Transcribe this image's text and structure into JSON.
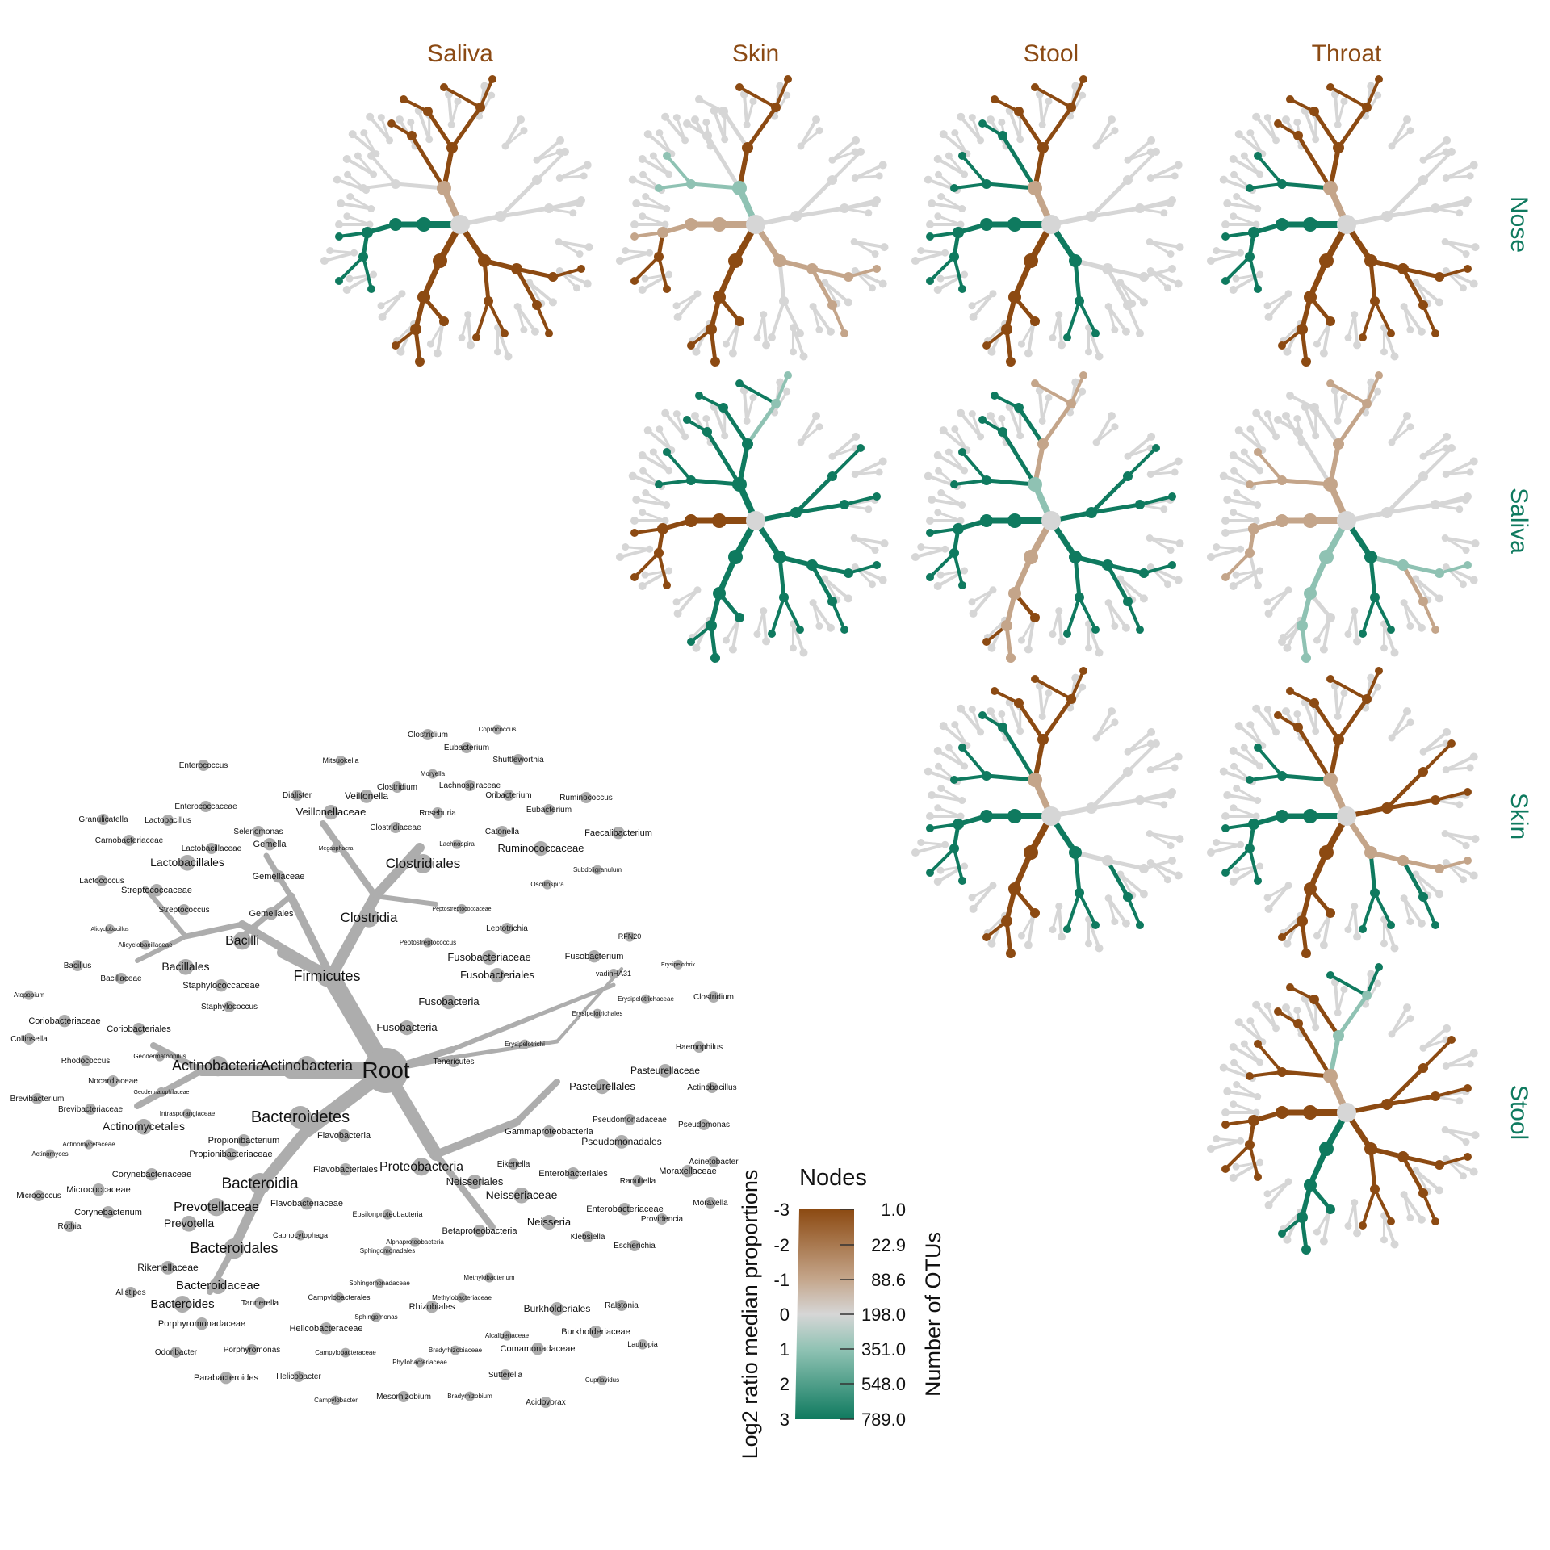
{
  "columns": [
    "Saliva",
    "Skin",
    "Stool",
    "Throat"
  ],
  "rows": [
    "Nose",
    "Saliva",
    "Skin",
    "Stool"
  ],
  "colors": {
    "brown": "#8C4A12",
    "lightbrown": "#C4A58A",
    "grey": "#D6D6D6",
    "lightteal": "#8FC2B3",
    "teal": "#0F7A5F",
    "key_tree": "#ADADAD",
    "col_label": "#8B4A14",
    "row_label": "#0F7A5F"
  },
  "legend": {
    "title": "Nodes",
    "left_axis_label": "Log2 ratio median proportions",
    "right_axis_label": "Number of OTUs",
    "left_ticks": [
      "-3",
      "-2",
      "-1",
      "0",
      "1",
      "2",
      "3"
    ],
    "right_ticks": [
      "1.0",
      "22.9",
      "88.6",
      "198.0",
      "351.0",
      "548.0",
      "789.0"
    ]
  },
  "key_tree": {
    "root": "Root",
    "labels": [
      {
        "t": "Root",
        "s": 28
      },
      {
        "t": "Firmicutes",
        "s": 18
      },
      {
        "t": "Actinobacteria",
        "s": 18
      },
      {
        "t": "Actinobacteria",
        "s": 18
      },
      {
        "t": "Bacteroidetes",
        "s": 20
      },
      {
        "t": "Proteobacteria",
        "s": 16
      },
      {
        "t": "Clostridia",
        "s": 17
      },
      {
        "t": "Clostridiales",
        "s": 17
      },
      {
        "t": "Bacilli",
        "s": 16
      },
      {
        "t": "Bacillales",
        "s": 14
      },
      {
        "t": "Lactobacillales",
        "s": 14
      },
      {
        "t": "Bacteroidia",
        "s": 19
      },
      {
        "t": "Bacteroidales",
        "s": 18
      },
      {
        "t": "Prevotellaceae",
        "s": 16
      },
      {
        "t": "Prevotella",
        "s": 14
      },
      {
        "t": "Bacteroidaceae",
        "s": 15
      },
      {
        "t": "Bacteroides",
        "s": 15
      },
      {
        "t": "Rikenellaceae",
        "s": 12
      },
      {
        "t": "Alistipes",
        "s": 10
      },
      {
        "t": "Tannerella",
        "s": 10
      },
      {
        "t": "Porphyromonadaceae",
        "s": 11
      },
      {
        "t": "Odoribacter",
        "s": 10
      },
      {
        "t": "Porphyromonas",
        "s": 10
      },
      {
        "t": "Parabacteroides",
        "s": 11
      },
      {
        "t": "Flavobacteria",
        "s": 11
      },
      {
        "t": "Flavobacteriales",
        "s": 11
      },
      {
        "t": "Flavobacteriaceae",
        "s": 11
      },
      {
        "t": "Capnocytophaga",
        "s": 9
      },
      {
        "t": "Veillonella",
        "s": 12
      },
      {
        "t": "Veillonellaceae",
        "s": 13
      },
      {
        "t": "Selenomonas",
        "s": 10
      },
      {
        "t": "Dialister",
        "s": 10
      },
      {
        "t": "Mitsuokella",
        "s": 9
      },
      {
        "t": "Megasphaera",
        "s": 7
      },
      {
        "t": "Clostridium",
        "s": 10
      },
      {
        "t": "Clostridium",
        "s": 10
      },
      {
        "t": "Eubacterium",
        "s": 10
      },
      {
        "t": "Coprococcus",
        "s": 8
      },
      {
        "t": "Shuttleworthia",
        "s": 10
      },
      {
        "t": "Moryella",
        "s": 8
      },
      {
        "t": "Lachnospiraceae",
        "s": 10
      },
      {
        "t": "Oribacterium",
        "s": 10
      },
      {
        "t": "Roseburia",
        "s": 10
      },
      {
        "t": "Catonella",
        "s": 10
      },
      {
        "t": "Lachnospira",
        "s": 8
      },
      {
        "t": "Clostridiaceae",
        "s": 10
      },
      {
        "t": "Ruminococcus",
        "s": 10
      },
      {
        "t": "Eubacterium",
        "s": 10
      },
      {
        "t": "Faecalibacterium",
        "s": 11
      },
      {
        "t": "Ruminococcaceae",
        "s": 13
      },
      {
        "t": "Subdoligranulum",
        "s": 8
      },
      {
        "t": "Oscillospira",
        "s": 8
      },
      {
        "t": "Peptostreptococcaceae",
        "s": 7
      },
      {
        "t": "Peptostreptococcus",
        "s": 8
      },
      {
        "t": "Enterococcus",
        "s": 10
      },
      {
        "t": "Enterococcaceae",
        "s": 10
      },
      {
        "t": "Granulicatella",
        "s": 10
      },
      {
        "t": "Lactobacillus",
        "s": 10
      },
      {
        "t": "Carnobacteriaceae",
        "s": 10
      },
      {
        "t": "Lactobacillaceae",
        "s": 10
      },
      {
        "t": "Gemella",
        "s": 11
      },
      {
        "t": "Gemellaceae",
        "s": 11
      },
      {
        "t": "Gemellales",
        "s": 11
      },
      {
        "t": "Lactococcus",
        "s": 10
      },
      {
        "t": "Streptococcaceae",
        "s": 11
      },
      {
        "t": "Streptococcus",
        "s": 10
      },
      {
        "t": "Alicyclobacillus",
        "s": 7
      },
      {
        "t": "Alicyclobacillaceae",
        "s": 8
      },
      {
        "t": "Bacillus",
        "s": 10
      },
      {
        "t": "Bacillaceae",
        "s": 10
      },
      {
        "t": "Staphylococcaceae",
        "s": 11
      },
      {
        "t": "Staphylococcus",
        "s": 10
      },
      {
        "t": "Atopobium",
        "s": 8
      },
      {
        "t": "Coriobacteriaceae",
        "s": 11
      },
      {
        "t": "Coriobacteriales",
        "s": 11
      },
      {
        "t": "Collinsella",
        "s": 10
      },
      {
        "t": "Rhodococcus",
        "s": 10
      },
      {
        "t": "Geodermatophilus",
        "s": 8
      },
      {
        "t": "Nocardiaceae",
        "s": 10
      },
      {
        "t": "Geodermatophilaceae",
        "s": 7
      },
      {
        "t": "Brevibacterium",
        "s": 10
      },
      {
        "t": "Brevibacteriaceae",
        "s": 10
      },
      {
        "t": "Intrasporangiaceae",
        "s": 8
      },
      {
        "t": "Actinomycetales",
        "s": 14
      },
      {
        "t": "Propionibacterium",
        "s": 11
      },
      {
        "t": "Propionibacteriaceae",
        "s": 11
      },
      {
        "t": "Actinomycetaceae",
        "s": 8
      },
      {
        "t": "Actinomyces",
        "s": 8
      },
      {
        "t": "Corynebacteriaceae",
        "s": 11
      },
      {
        "t": "Micrococcaceae",
        "s": 11
      },
      {
        "t": "Micrococcus",
        "s": 10
      },
      {
        "t": "Corynebacterium",
        "s": 11
      },
      {
        "t": "Rothia",
        "s": 10
      },
      {
        "t": "Leptotrichia",
        "s": 10
      },
      {
        "t": "Fusobacteriaceae",
        "s": 13
      },
      {
        "t": "Fusobacterium",
        "s": 11
      },
      {
        "t": "Fusobacteriales",
        "s": 13
      },
      {
        "t": "Fusobacteria",
        "s": 13
      },
      {
        "t": "Fusobacteria",
        "s": 13
      },
      {
        "t": "RFN20",
        "s": 9
      },
      {
        "t": "vadinHA31",
        "s": 9
      },
      {
        "t": "Erysipelothrix",
        "s": 7
      },
      {
        "t": "Erysipelotrichaceae",
        "s": 8
      },
      {
        "t": "Clostridium",
        "s": 10
      },
      {
        "t": "Erysipelotrichales",
        "s": 8
      },
      {
        "t": "Erysipelotrichi",
        "s": 8
      },
      {
        "t": "Tenericutes",
        "s": 10
      },
      {
        "t": "Haemophilus",
        "s": 10
      },
      {
        "t": "Pasteurellaceae",
        "s": 12
      },
      {
        "t": "Actinobacillus",
        "s": 10
      },
      {
        "t": "Pasteurellales",
        "s": 13
      },
      {
        "t": "Pseudomonadaceae",
        "s": 10
      },
      {
        "t": "Pseudomonas",
        "s": 10
      },
      {
        "t": "Gammaproteobacteria",
        "s": 11
      },
      {
        "t": "Pseudomonadales",
        "s": 12
      },
      {
        "t": "Acinetobacter",
        "s": 10
      },
      {
        "t": "Moraxellaceae",
        "s": 11
      },
      {
        "t": "Eikenella",
        "s": 10
      },
      {
        "t": "Enterobacteriales",
        "s": 11
      },
      {
        "t": "Raoultella",
        "s": 10
      },
      {
        "t": "Neisseriales",
        "s": 13
      },
      {
        "t": "Neisseriaceae",
        "s": 14
      },
      {
        "t": "Moraxella",
        "s": 10
      },
      {
        "t": "Enterobacteriaceae",
        "s": 11
      },
      {
        "t": "Providencia",
        "s": 10
      },
      {
        "t": "Neisseria",
        "s": 13
      },
      {
        "t": "Klebsiella",
        "s": 10
      },
      {
        "t": "Escherichia",
        "s": 10
      },
      {
        "t": "Epsilonproteobacteria",
        "s": 9
      },
      {
        "t": "Betaproteobacteria",
        "s": 11
      },
      {
        "t": "Alphaproteobacteria",
        "s": 8
      },
      {
        "t": "Sphingomonadales",
        "s": 8
      },
      {
        "t": "Methylobacterium",
        "s": 8
      },
      {
        "t": "Sphingomonadaceae",
        "s": 8
      },
      {
        "t": "Methylobacteriaceae",
        "s": 8
      },
      {
        "t": "Campylobacterales",
        "s": 9
      },
      {
        "t": "Rhizobiales",
        "s": 11
      },
      {
        "t": "Sphingomonas",
        "s": 8
      },
      {
        "t": "Burkholderiales",
        "s": 12
      },
      {
        "t": "Ralstonia",
        "s": 10
      },
      {
        "t": "Helicobacteraceae",
        "s": 11
      },
      {
        "t": "Burkholderiaceae",
        "s": 11
      },
      {
        "t": "Alcaligenaceae",
        "s": 8
      },
      {
        "t": "Bradyrhizobiaceae",
        "s": 8
      },
      {
        "t": "Lautropia",
        "s": 9
      },
      {
        "t": "Campylobacteraceae",
        "s": 8
      },
      {
        "t": "Comamonadaceae",
        "s": 11
      },
      {
        "t": "Phyllobacteriaceae",
        "s": 8
      },
      {
        "t": "Cupriavidus",
        "s": 8
      },
      {
        "t": "Sutterella",
        "s": 10
      },
      {
        "t": "Helicobacter",
        "s": 10
      },
      {
        "t": "Campylobacter",
        "s": 8
      },
      {
        "t": "Mesorhizobium",
        "s": 10
      },
      {
        "t": "Bradyrhizobium",
        "s": 8
      },
      {
        "t": "Acidovorax",
        "s": 10
      }
    ]
  },
  "panels": [
    {
      "row": "Nose",
      "col": "Saliva",
      "pattern": "A"
    },
    {
      "row": "Nose",
      "col": "Skin",
      "pattern": "B"
    },
    {
      "row": "Nose",
      "col": "Stool",
      "pattern": "C"
    },
    {
      "row": "Nose",
      "col": "Throat",
      "pattern": "D"
    },
    {
      "row": "Saliva",
      "col": "Skin",
      "pattern": "E"
    },
    {
      "row": "Saliva",
      "col": "Stool",
      "pattern": "F"
    },
    {
      "row": "Saliva",
      "col": "Throat",
      "pattern": "G"
    },
    {
      "row": "Skin",
      "col": "Stool",
      "pattern": "H"
    },
    {
      "row": "Skin",
      "col": "Throat",
      "pattern": "I"
    },
    {
      "row": "Stool",
      "col": "Throat",
      "pattern": "J"
    }
  ]
}
